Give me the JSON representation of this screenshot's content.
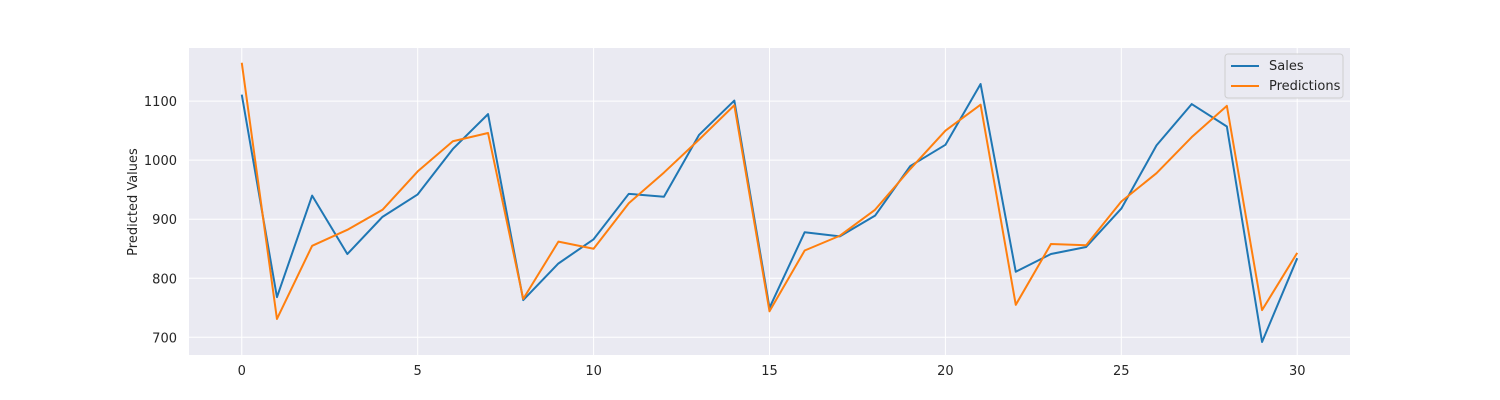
{
  "chart_data": {
    "type": "line",
    "title": "",
    "xlabel": "",
    "ylabel": "Predicted Values",
    "xlim": [
      -1.5,
      31.5
    ],
    "ylim": [
      670,
      1190
    ],
    "xticks": [
      0,
      5,
      10,
      15,
      20,
      25,
      30
    ],
    "yticks": [
      700,
      800,
      900,
      1000,
      1100
    ],
    "grid": true,
    "legend_position": "top-right",
    "x": [
      0,
      1,
      2,
      3,
      4,
      5,
      6,
      7,
      8,
      9,
      10,
      11,
      12,
      13,
      14,
      15,
      16,
      17,
      18,
      19,
      20,
      21,
      22,
      23,
      24,
      25,
      26,
      27,
      28,
      29,
      30
    ],
    "series": [
      {
        "name": "Sales",
        "color": "#1f77b4",
        "values": [
          1111,
          768,
          940,
          841,
          904,
          942,
          1019,
          1078,
          763,
          825,
          866,
          943,
          938,
          1043,
          1101,
          750,
          878,
          871,
          906,
          990,
          1026,
          1129,
          811,
          841,
          853,
          918,
          1025,
          1095,
          1057,
          692,
          834
        ]
      },
      {
        "name": "Predictions",
        "color": "#ff7f0e",
        "values": [
          1165,
          731,
          855,
          882,
          916,
          981,
          1032,
          1046,
          765,
          862,
          850,
          927,
          979,
          1035,
          1093,
          744,
          847,
          872,
          916,
          985,
          1050,
          1094,
          755,
          858,
          856,
          930,
          978,
          1039,
          1092,
          746,
          843
        ]
      }
    ]
  }
}
